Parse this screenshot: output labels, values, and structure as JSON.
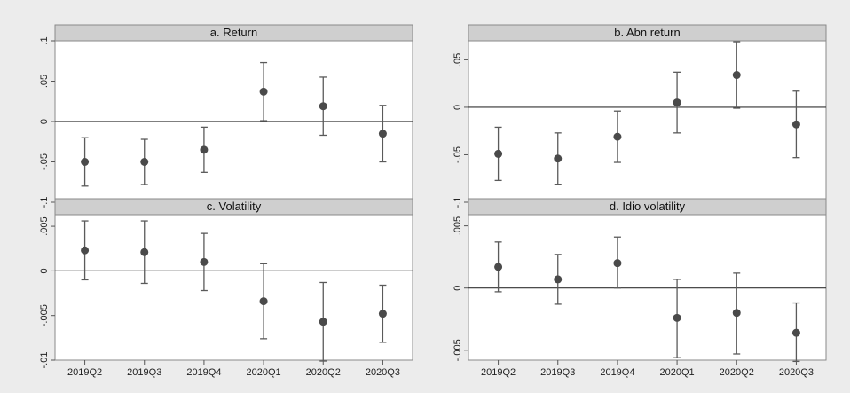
{
  "chart_data": [
    {
      "type": "scatter",
      "style": "coefficient-plot-with-error-bars",
      "title": "a. Return",
      "categories": [
        "2019Q2",
        "2019Q3",
        "2019Q4",
        "2020Q1",
        "2020Q2",
        "2020Q3"
      ],
      "values": [
        -0.05,
        -0.05,
        -0.035,
        0.037,
        0.019,
        -0.015
      ],
      "ci_low": [
        -0.08,
        -0.078,
        -0.063,
        0.001,
        -0.017,
        -0.05
      ],
      "ci_high": [
        -0.02,
        -0.022,
        -0.007,
        0.073,
        0.055,
        0.02
      ],
      "yticks": [
        0.1,
        0.05,
        0,
        -0.05,
        -0.1
      ],
      "ytick_labels": [
        ".1",
        ".05",
        "0",
        "-.05",
        "-.1"
      ],
      "ylim": [
        -0.1,
        0.1
      ],
      "reference_line": 0,
      "show_xtick_labels": false
    },
    {
      "type": "scatter",
      "style": "coefficient-plot-with-error-bars",
      "title": "b. Abn return",
      "categories": [
        "2019Q2",
        "2019Q3",
        "2019Q4",
        "2020Q1",
        "2020Q2",
        "2020Q3"
      ],
      "values": [
        -0.049,
        -0.054,
        -0.031,
        0.005,
        0.034,
        -0.018
      ],
      "ci_low": [
        -0.077,
        -0.081,
        -0.058,
        -0.027,
        -0.001,
        -0.053
      ],
      "ci_high": [
        -0.021,
        -0.027,
        -0.004,
        0.037,
        0.069,
        0.017
      ],
      "yticks": [
        0.05,
        0,
        -0.05,
        -0.1
      ],
      "ytick_labels": [
        ".05",
        "0",
        "-.05",
        "-.1"
      ],
      "ylim": [
        -0.1,
        0.07
      ],
      "reference_line": 0,
      "show_xtick_labels": false
    },
    {
      "type": "scatter",
      "style": "coefficient-plot-with-error-bars",
      "title": "c. Volatility",
      "categories": [
        "2019Q2",
        "2019Q3",
        "2019Q4",
        "2020Q1",
        "2020Q2",
        "2020Q3"
      ],
      "values": [
        0.0023,
        0.0021,
        0.001,
        -0.0034,
        -0.0057,
        -0.0048
      ],
      "ci_low": [
        -0.001,
        -0.0014,
        -0.0022,
        -0.0076,
        -0.0101,
        -0.008
      ],
      "ci_high": [
        0.0056,
        0.0056,
        0.0042,
        0.0008,
        -0.0013,
        -0.0016
      ],
      "yticks": [
        0.005,
        0,
        -0.005,
        -0.01
      ],
      "ytick_labels": [
        ".005",
        "0",
        "-.005",
        "-.01"
      ],
      "ylim": [
        -0.01,
        0.0063
      ],
      "reference_line": 0,
      "show_xtick_labels": true
    },
    {
      "type": "scatter",
      "style": "coefficient-plot-with-error-bars",
      "title": "d. Idio volatility",
      "categories": [
        "2019Q2",
        "2019Q3",
        "2019Q4",
        "2020Q1",
        "2020Q2",
        "2020Q3"
      ],
      "values": [
        0.0017,
        0.0007,
        0.002,
        -0.0024,
        -0.002,
        -0.0036
      ],
      "ci_low": [
        -0.0003,
        -0.0013,
        0.0,
        -0.0056,
        -0.0053,
        -0.0059
      ],
      "ci_high": [
        0.0037,
        0.0027,
        0.0041,
        0.0007,
        0.0012,
        -0.0012
      ],
      "yticks": [
        0.005,
        0,
        -0.005
      ],
      "ytick_labels": [
        ".005",
        "0",
        "-.005"
      ],
      "ylim": [
        -0.0058,
        0.0059
      ],
      "reference_line": 0,
      "show_xtick_labels": true
    }
  ],
  "colors": {
    "marker": "#4a4a4a",
    "error_bar": "#5a5a5a",
    "zero_line": "#333333",
    "panel_title_bg": "#cfcfcf",
    "frame": "#8a8a8a",
    "outer_bg": "#ececec",
    "plot_bg": "#ffffff"
  }
}
